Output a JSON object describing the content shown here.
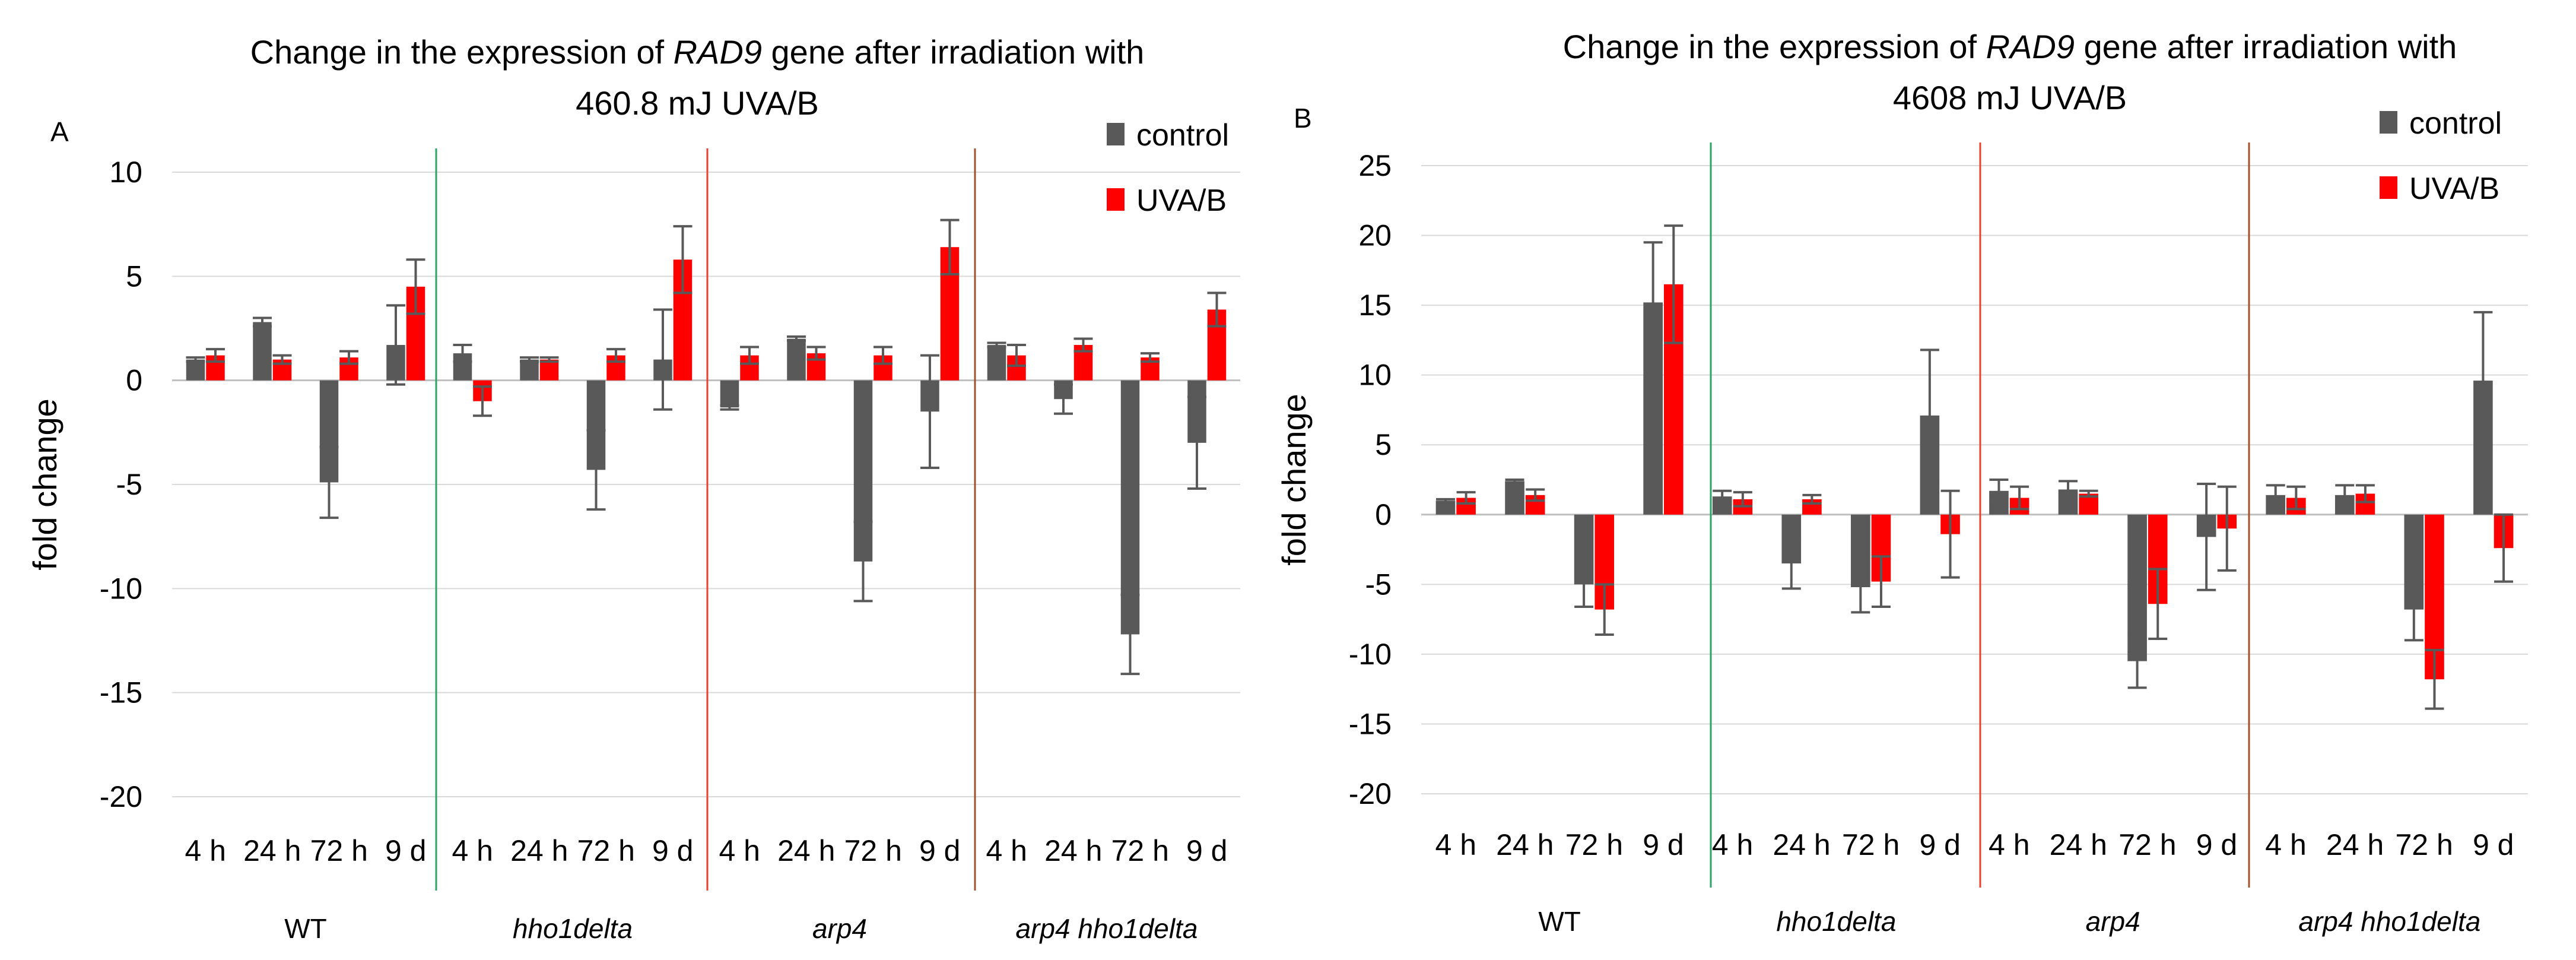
{
  "chart_data": [
    {
      "type": "bar",
      "panel_label": "A",
      "title_parts": [
        {
          "text": "Change in the expression of ",
          "italic": false
        },
        {
          "text": "RAD9",
          "italic": true
        },
        {
          "text": " gene after irradiation with",
          "italic": false
        }
      ],
      "title_line2": "460.8 mJ UVA/B",
      "ylabel": "fold change",
      "ylim": [
        -20,
        10
      ],
      "yticks": [
        10,
        5,
        0,
        -5,
        -10,
        -15,
        -20
      ],
      "legend_position": "top-right",
      "categories": [
        "4 h",
        "24 h",
        "72 h",
        "9 d",
        "4 h",
        "24 h",
        "72 h",
        "9 d",
        "4 h",
        "24 h",
        "72 h",
        "9 d",
        "4 h",
        "24 h",
        "72 h",
        "9 d"
      ],
      "groups": [
        {
          "label": "WT",
          "italic": false
        },
        {
          "label": "hho1delta",
          "italic": true
        },
        {
          "label": "arp4",
          "italic": true
        },
        {
          "label": "arp4 hho1delta",
          "italic": true
        }
      ],
      "series": [
        {
          "name": "control",
          "color": "#595959",
          "values": [
            1.0,
            2.8,
            -4.9,
            1.7,
            1.3,
            1.0,
            -4.3,
            1.0,
            -1.3,
            2.0,
            -8.7,
            -1.5,
            1.7,
            -0.9,
            -12.2,
            -3.0
          ],
          "err": [
            0.1,
            0.2,
            1.7,
            1.9,
            0.4,
            0.1,
            1.9,
            2.4,
            0.1,
            0.1,
            1.9,
            2.7,
            0.1,
            0.7,
            1.9,
            2.2
          ]
        },
        {
          "name": "UVA/B",
          "color": "#ff0000",
          "values": [
            1.2,
            1.0,
            1.1,
            4.5,
            -1.0,
            1.0,
            1.2,
            5.8,
            1.2,
            1.3,
            1.2,
            6.4,
            1.2,
            1.7,
            1.1,
            3.4
          ],
          "err": [
            0.3,
            0.2,
            0.3,
            1.3,
            0.7,
            0.1,
            0.3,
            1.6,
            0.4,
            0.3,
            0.4,
            1.3,
            0.5,
            0.3,
            0.2,
            0.8
          ]
        }
      ]
    },
    {
      "type": "bar",
      "panel_label": "B",
      "title_parts": [
        {
          "text": "Change in the expression of ",
          "italic": false
        },
        {
          "text": "RAD9",
          "italic": true
        },
        {
          "text": " gene after irradiation with",
          "italic": false
        }
      ],
      "title_line2": "4608 mJ UVA/B",
      "ylabel": "fold change",
      "ylim": [
        -20,
        25
      ],
      "yticks": [
        25,
        20,
        15,
        10,
        5,
        0,
        -5,
        -10,
        -15,
        -20
      ],
      "legend_position": "top-right",
      "categories": [
        "4 h",
        "24 h",
        "72 h",
        "9 d",
        "4 h",
        "24 h",
        "72 h",
        "9 d",
        "4 h",
        "24 h",
        "72 h",
        "9 d",
        "4 h",
        "24 h",
        "72 h",
        "9 d"
      ],
      "groups": [
        {
          "label": "WT",
          "italic": false
        },
        {
          "label": "hho1delta",
          "italic": true
        },
        {
          "label": "arp4",
          "italic": true
        },
        {
          "label": "arp4 hho1delta",
          "italic": true
        }
      ],
      "series": [
        {
          "name": "control",
          "color": "#595959",
          "values": [
            1.0,
            2.4,
            -5.0,
            15.2,
            1.3,
            -3.5,
            -5.2,
            7.1,
            1.7,
            1.8,
            -10.5,
            -1.6,
            1.4,
            1.4,
            -6.8,
            9.6
          ],
          "err": [
            0.1,
            0.1,
            1.6,
            4.3,
            0.4,
            1.8,
            1.8,
            4.7,
            0.8,
            0.6,
            1.9,
            3.8,
            0.7,
            0.7,
            2.2,
            4.9
          ]
        },
        {
          "name": "UVA/B",
          "color": "#ff0000",
          "values": [
            1.2,
            1.4,
            -6.8,
            16.5,
            1.1,
            1.1,
            -4.8,
            -1.4,
            1.2,
            1.5,
            -6.4,
            -1.0,
            1.2,
            1.5,
            -11.8,
            -2.4
          ],
          "err": [
            0.4,
            0.4,
            1.8,
            4.2,
            0.5,
            0.3,
            1.8,
            3.1,
            0.8,
            0.2,
            2.5,
            3.0,
            0.8,
            0.6,
            2.1,
            2.4
          ]
        }
      ]
    }
  ]
}
